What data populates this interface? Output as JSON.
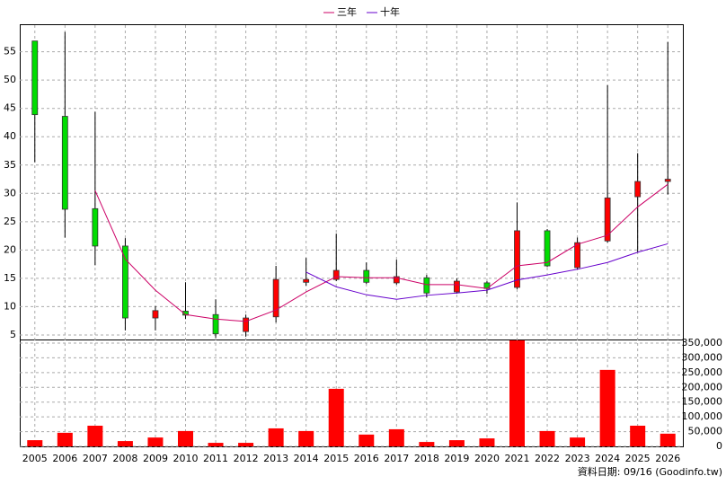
{
  "chart_data": [
    {
      "type": "candlestick",
      "open": [
        56.9,
        43.6,
        27.3,
        20.7,
        8.0,
        9.2,
        8.6,
        5.6,
        8.2,
        14.3,
        14.8,
        16.4,
        14.2,
        15.1,
        12.6,
        14.2,
        13.4,
        23.4,
        16.9,
        21.6,
        29.4,
        32.1
      ],
      "high": [
        56.9,
        58.5,
        44.4,
        22.1,
        10.1,
        14.3,
        11.3,
        8.6,
        17.2,
        18.6,
        22.9,
        17.8,
        18.3,
        15.6,
        15.0,
        14.5,
        28.4,
        23.7,
        22.2,
        49.1,
        37.1,
        56.7
      ],
      "low": [
        35.5,
        22.2,
        17.3,
        5.8,
        5.8,
        7.8,
        4.5,
        4.7,
        7.2,
        13.7,
        14.5,
        14.0,
        13.9,
        11.6,
        12.3,
        12.3,
        13.1,
        17.0,
        16.6,
        21.3,
        19.6,
        29.8
      ],
      "close": [
        43.9,
        27.2,
        20.7,
        8.0,
        9.3,
        8.5,
        5.2,
        8.0,
        14.8,
        14.8,
        16.4,
        14.3,
        15.3,
        12.4,
        14.5,
        13.2,
        23.4,
        17.2,
        21.3,
        29.2,
        32.1,
        32.5
      ],
      "up_color": "#ff0000",
      "down_color": "#00dd00",
      "series": [
        {
          "name": "三年",
          "color": "#cc0066",
          "values": [
            null,
            null,
            30.5,
            18.4,
            12.9,
            8.6,
            7.8,
            7.4,
            9.4,
            12.6,
            15.3,
            15.1,
            15.1,
            13.9,
            13.9,
            13.2,
            17.2,
            17.8,
            21.0,
            22.6,
            27.6,
            31.6
          ]
        },
        {
          "name": "十年",
          "color": "#6600cc",
          "values": [
            null,
            null,
            null,
            null,
            null,
            null,
            null,
            null,
            null,
            16.1,
            13.5,
            12.1,
            11.3,
            12.0,
            12.4,
            12.9,
            14.7,
            15.6,
            16.6,
            17.8,
            19.6,
            21.1
          ]
        }
      ],
      "ylim": [
        4.2,
        59.7
      ],
      "yticks": [
        5,
        10,
        15,
        20,
        25,
        30,
        35,
        40,
        45,
        50,
        55
      ],
      "grid": true
    },
    {
      "type": "bar",
      "categories": [
        "2005",
        "2006",
        "2007",
        "2008",
        "2009",
        "2010",
        "2011",
        "2012",
        "2013",
        "2014",
        "2015",
        "2016",
        "2017",
        "2018",
        "2019",
        "2020",
        "2021",
        "2022",
        "2023",
        "2024",
        "2025",
        "2026"
      ],
      "values": [
        21000,
        46000,
        70000,
        18000,
        30000,
        52000,
        12000,
        12000,
        61000,
        52000,
        195000,
        40000,
        58000,
        15000,
        21000,
        27000,
        359000,
        52000,
        30000,
        259000,
        70000,
        43000
      ],
      "color": "#ff0000",
      "ylim": [
        0,
        362000
      ],
      "yticks": [
        0,
        {
          "value": 50000,
          "label": "50,000"
        },
        {
          "value": 100000,
          "label": "100,000"
        },
        {
          "value": 150000,
          "label": "150,000"
        },
        {
          "value": 200000,
          "label": "200,000"
        },
        {
          "value": 250000,
          "label": "250,000"
        },
        {
          "value": 300000,
          "label": "300,000"
        },
        {
          "value": 350000,
          "label": "350,000"
        }
      ],
      "grid": true
    }
  ],
  "footer": "資料日期: 09/16  (Goodinfo.tw)"
}
